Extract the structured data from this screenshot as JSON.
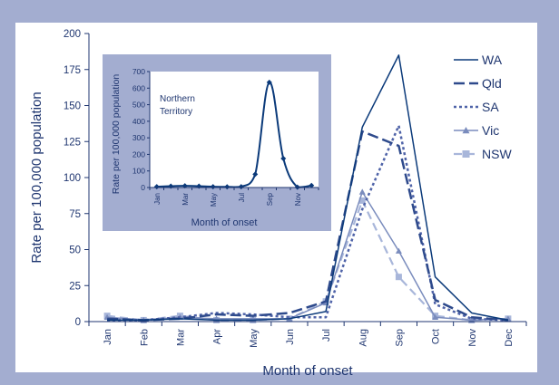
{
  "chart_data": [
    {
      "type": "line",
      "xlabel": "Month of onset",
      "ylabel": "Rate per 100,000 population",
      "ylim": [
        0,
        200
      ],
      "yticks": [
        "0",
        "25",
        "50",
        "75",
        "100",
        "125",
        "150",
        "175",
        "200"
      ],
      "categories": [
        "Jan",
        "Feb",
        "Mar",
        "Apr",
        "May",
        "Jun",
        "Jul",
        "Aug",
        "Sep",
        "Oct",
        "Nov",
        "Dec"
      ],
      "legend_position": "top-right",
      "grid": false,
      "series": [
        {
          "name": "WA",
          "color": "#0b3a7a",
          "style": "solid",
          "marker": "none",
          "values": [
            1,
            1,
            2,
            1,
            1,
            2,
            7,
            135,
            185,
            31,
            6,
            1
          ]
        },
        {
          "name": "Qld",
          "color": "#2e4a8c",
          "style": "longdash",
          "marker": "none",
          "values": [
            2,
            1,
            2,
            5,
            4,
            6,
            14,
            132,
            122,
            15,
            3,
            1
          ]
        },
        {
          "name": "SA",
          "color": "#4f63a8",
          "style": "dotted",
          "marker": "none",
          "values": [
            1,
            1,
            3,
            6,
            5,
            3,
            3,
            78,
            136,
            12,
            2,
            1
          ]
        },
        {
          "name": "Vic",
          "color": "#7a8cbd",
          "style": "solid",
          "marker": "triangle",
          "values": [
            3,
            1,
            3,
            2,
            2,
            2,
            13,
            90,
            49,
            3,
            1,
            2
          ]
        },
        {
          "name": "NSW",
          "color": "#a8b6da",
          "style": "dashed",
          "marker": "square",
          "values": [
            4,
            1,
            4,
            1,
            1,
            2,
            14,
            84,
            31,
            4,
            1,
            2
          ]
        }
      ]
    },
    {
      "type": "line",
      "annotation": [
        "Northern",
        "Territory"
      ],
      "xlabel": "Month of onset",
      "ylabel": "Rate per 100,000 population",
      "ylim": [
        0,
        700
      ],
      "yticks": [
        "0",
        "100",
        "200",
        "300",
        "400",
        "500",
        "600",
        "700"
      ],
      "categories": [
        "Jan",
        "Feb",
        "Mar",
        "Apr",
        "May",
        "Jun",
        "Jul",
        "Aug",
        "Sep",
        "Oct",
        "Nov",
        "Dec"
      ],
      "tick_labels": [
        "Jan",
        "",
        "Mar",
        "",
        "May",
        "",
        "Jul",
        "",
        "Sep",
        "",
        "Nov",
        ""
      ],
      "series": [
        {
          "color": "#0b3a7a",
          "marker": "diamond",
          "values": [
            5,
            8,
            10,
            8,
            5,
            4,
            5,
            80,
            635,
            175,
            2,
            12
          ]
        }
      ]
    }
  ],
  "colors": {
    "background": "#a3add0",
    "plot_bg": "#ffffff",
    "axis": "#1f3670",
    "text": "#1f3670"
  }
}
